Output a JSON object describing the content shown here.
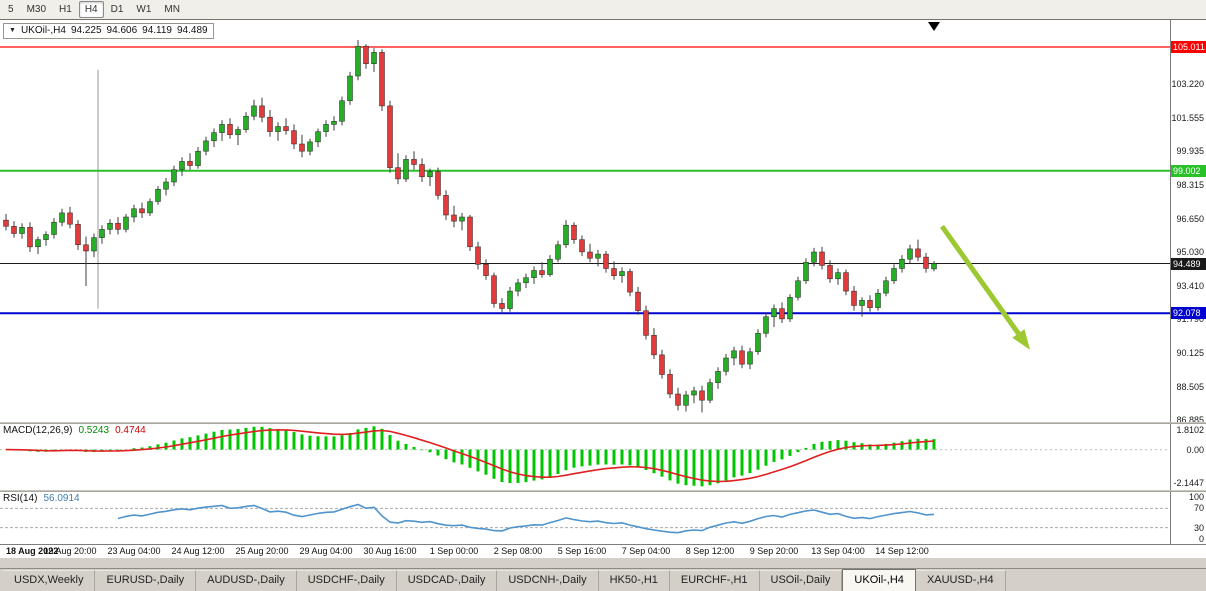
{
  "toolbar": {
    "timeframes": [
      {
        "label": "5",
        "active": false
      },
      {
        "label": "M30",
        "active": false
      },
      {
        "label": "H1",
        "active": false
      },
      {
        "label": "H4",
        "active": true
      },
      {
        "label": "D1",
        "active": false
      },
      {
        "label": "W1",
        "active": false
      },
      {
        "label": "MN",
        "active": false
      }
    ]
  },
  "chart": {
    "title": {
      "dropdown": "▼",
      "symbol_period": "UKOil-,H4",
      "open": "94.225",
      "high": "94.606",
      "low": "94.119",
      "close": "94.489"
    }
  },
  "chart_data": {
    "type": "candlestick",
    "symbol": "UKOil-",
    "period": "H4",
    "current_bar": {
      "open": 94.225,
      "high": 94.606,
      "low": 94.119,
      "close": 94.489
    },
    "colors": {
      "bull": "#27ae27",
      "bear": "#e23b3b",
      "wick": "#3c3c3c",
      "outline": "#262626"
    },
    "price_axis_ticks": [
      "103.220",
      "101.555",
      "99.935",
      "98.315",
      "96.650",
      "95.030",
      "93.410",
      "91.790",
      "90.125",
      "88.505",
      "86.885"
    ],
    "horizontal_lines": [
      {
        "name": "resistance-line",
        "price": 105.011,
        "label": "105.011",
        "color": "#ff0000",
        "width": 1.2
      },
      {
        "name": "mid-level-line",
        "price": 99.002,
        "label": "99.002",
        "color": "#28c128",
        "width": 2
      },
      {
        "name": "support-line",
        "price": 92.078,
        "label": "92.078",
        "color": "#0000d0",
        "width": 2
      },
      {
        "name": "current-price-line",
        "price": 94.489,
        "label": "94.489",
        "color": "#1a1a1a",
        "width": 1
      }
    ],
    "time_axis": {
      "bars_per_label": 8,
      "labels": [
        "18 Aug 2022",
        "19 Aug 20:00",
        "23 Aug 04:00",
        "24 Aug 12:00",
        "25 Aug 20:00",
        "29 Aug 04:00",
        "30 Aug 16:00",
        "1 Sep 00:00",
        "2 Sep 08:00",
        "5 Sep 16:00",
        "7 Sep 04:00",
        "8 Sep 12:00",
        "9 Sep 20:00",
        "13 Sep 04:00",
        "14 Sep 12:00"
      ]
    },
    "candles_ohlc": [
      [
        96.6,
        96.9,
        96.1,
        96.3
      ],
      [
        96.3,
        96.55,
        95.75,
        95.95
      ],
      [
        95.95,
        96.45,
        95.7,
        96.25
      ],
      [
        96.25,
        96.5,
        95.05,
        95.3
      ],
      [
        95.3,
        95.8,
        94.95,
        95.65
      ],
      [
        95.65,
        96.05,
        95.35,
        95.9
      ],
      [
        95.9,
        96.7,
        95.7,
        96.5
      ],
      [
        96.5,
        97.15,
        96.3,
        96.95
      ],
      [
        96.95,
        97.25,
        96.2,
        96.4
      ],
      [
        96.4,
        96.6,
        95.15,
        95.4
      ],
      [
        95.4,
        95.8,
        93.4,
        95.1
      ],
      [
        95.1,
        95.95,
        94.8,
        95.75
      ],
      [
        95.75,
        96.35,
        95.45,
        96.15
      ],
      [
        96.15,
        96.65,
        95.9,
        96.45
      ],
      [
        96.45,
        96.75,
        95.9,
        96.15
      ],
      [
        96.15,
        96.9,
        96.0,
        96.75
      ],
      [
        96.75,
        97.35,
        96.5,
        97.15
      ],
      [
        97.15,
        97.45,
        96.7,
        96.95
      ],
      [
        96.95,
        97.65,
        96.8,
        97.5
      ],
      [
        97.5,
        98.25,
        97.35,
        98.1
      ],
      [
        98.1,
        98.65,
        97.8,
        98.45
      ],
      [
        98.45,
        99.25,
        98.25,
        99.05
      ],
      [
        99.05,
        99.65,
        98.75,
        99.45
      ],
      [
        99.45,
        99.85,
        99.05,
        99.25
      ],
      [
        99.25,
        100.15,
        99.1,
        99.95
      ],
      [
        99.95,
        100.65,
        99.75,
        100.45
      ],
      [
        100.45,
        101.05,
        100.15,
        100.85
      ],
      [
        100.85,
        101.45,
        100.45,
        101.25
      ],
      [
        101.25,
        101.55,
        100.55,
        100.75
      ],
      [
        100.75,
        101.15,
        100.25,
        101.0
      ],
      [
        101.0,
        101.85,
        100.85,
        101.65
      ],
      [
        101.65,
        102.45,
        101.45,
        102.15
      ],
      [
        102.15,
        102.55,
        101.35,
        101.6
      ],
      [
        101.6,
        101.95,
        100.65,
        100.9
      ],
      [
        100.9,
        101.35,
        100.45,
        101.15
      ],
      [
        101.15,
        101.55,
        100.75,
        100.95
      ],
      [
        100.95,
        101.25,
        100.05,
        100.3
      ],
      [
        100.3,
        100.75,
        99.65,
        99.95
      ],
      [
        99.95,
        100.55,
        99.75,
        100.4
      ],
      [
        100.4,
        101.05,
        100.15,
        100.9
      ],
      [
        100.9,
        101.45,
        100.65,
        101.25
      ],
      [
        101.25,
        101.65,
        100.95,
        101.4
      ],
      [
        101.4,
        102.6,
        101.2,
        102.4
      ],
      [
        102.4,
        103.8,
        102.2,
        103.6
      ],
      [
        103.6,
        105.35,
        103.4,
        105.05
      ],
      [
        105.05,
        105.15,
        103.95,
        104.2
      ],
      [
        104.2,
        104.95,
        103.8,
        104.75
      ],
      [
        104.75,
        104.9,
        101.9,
        102.15
      ],
      [
        102.15,
        102.4,
        98.9,
        99.15
      ],
      [
        99.15,
        99.85,
        98.35,
        98.6
      ],
      [
        98.6,
        99.75,
        98.45,
        99.55
      ],
      [
        99.55,
        99.95,
        99.05,
        99.3
      ],
      [
        99.3,
        99.6,
        98.45,
        98.7
      ],
      [
        98.7,
        99.1,
        98.25,
        98.95
      ],
      [
        98.95,
        99.15,
        97.6,
        97.8
      ],
      [
        97.8,
        98.05,
        96.6,
        96.85
      ],
      [
        96.85,
        97.3,
        96.25,
        96.55
      ],
      [
        96.55,
        96.95,
        96.1,
        96.75
      ],
      [
        96.75,
        96.85,
        95.1,
        95.3
      ],
      [
        95.3,
        95.55,
        94.2,
        94.45
      ],
      [
        94.45,
        94.7,
        93.7,
        93.9
      ],
      [
        93.9,
        94.05,
        92.35,
        92.55
      ],
      [
        92.55,
        92.8,
        92.05,
        92.3
      ],
      [
        92.3,
        93.35,
        92.15,
        93.15
      ],
      [
        93.15,
        93.75,
        92.9,
        93.55
      ],
      [
        93.55,
        94.0,
        93.3,
        93.8
      ],
      [
        93.8,
        94.35,
        93.5,
        94.15
      ],
      [
        94.15,
        94.55,
        93.8,
        93.95
      ],
      [
        93.95,
        94.9,
        93.85,
        94.7
      ],
      [
        94.7,
        95.6,
        94.55,
        95.4
      ],
      [
        95.4,
        96.6,
        95.25,
        96.35
      ],
      [
        96.35,
        96.5,
        95.45,
        95.65
      ],
      [
        95.65,
        95.85,
        94.85,
        95.05
      ],
      [
        95.05,
        95.45,
        94.55,
        94.75
      ],
      [
        94.75,
        95.15,
        94.35,
        94.95
      ],
      [
        94.95,
        95.1,
        94.05,
        94.25
      ],
      [
        94.25,
        94.6,
        93.7,
        93.9
      ],
      [
        93.9,
        94.3,
        93.55,
        94.1
      ],
      [
        94.1,
        94.25,
        92.9,
        93.1
      ],
      [
        93.1,
        93.35,
        92.0,
        92.2
      ],
      [
        92.2,
        92.45,
        90.8,
        91.0
      ],
      [
        91.0,
        91.35,
        89.85,
        90.05
      ],
      [
        90.05,
        90.3,
        88.9,
        89.1
      ],
      [
        89.1,
        89.35,
        87.95,
        88.15
      ],
      [
        88.15,
        88.45,
        87.35,
        87.6
      ],
      [
        87.6,
        88.3,
        87.3,
        88.1
      ],
      [
        88.1,
        88.5,
        87.7,
        88.3
      ],
      [
        88.3,
        88.55,
        87.25,
        87.85
      ],
      [
        87.85,
        88.9,
        87.7,
        88.7
      ],
      [
        88.7,
        89.45,
        88.4,
        89.25
      ],
      [
        89.25,
        90.1,
        89.05,
        89.9
      ],
      [
        89.9,
        90.45,
        89.55,
        90.25
      ],
      [
        90.25,
        90.5,
        89.4,
        89.6
      ],
      [
        89.6,
        90.4,
        89.35,
        90.2
      ],
      [
        90.2,
        91.3,
        90.05,
        91.1
      ],
      [
        91.1,
        92.1,
        90.9,
        91.9
      ],
      [
        91.9,
        92.5,
        91.4,
        92.3
      ],
      [
        92.3,
        92.6,
        91.6,
        91.8
      ],
      [
        91.8,
        93.0,
        91.65,
        92.85
      ],
      [
        92.85,
        93.85,
        92.7,
        93.65
      ],
      [
        93.65,
        94.75,
        93.5,
        94.55
      ],
      [
        94.55,
        95.25,
        94.35,
        95.05
      ],
      [
        95.05,
        95.3,
        94.2,
        94.4
      ],
      [
        94.4,
        94.65,
        93.55,
        93.75
      ],
      [
        93.75,
        94.25,
        93.45,
        94.05
      ],
      [
        94.05,
        94.2,
        92.95,
        93.15
      ],
      [
        93.15,
        93.4,
        92.2,
        92.45
      ],
      [
        92.45,
        92.85,
        91.9,
        92.7
      ],
      [
        92.7,
        92.95,
        92.15,
        92.35
      ],
      [
        92.35,
        93.25,
        92.2,
        93.05
      ],
      [
        93.05,
        93.85,
        92.9,
        93.65
      ],
      [
        93.65,
        94.45,
        93.5,
        94.25
      ],
      [
        94.25,
        94.9,
        94.05,
        94.7
      ],
      [
        94.7,
        95.4,
        94.5,
        95.2
      ],
      [
        95.2,
        95.65,
        94.6,
        94.8
      ],
      [
        94.8,
        95.0,
        94.05,
        94.25
      ],
      [
        94.225,
        94.606,
        94.119,
        94.489
      ]
    ],
    "annotations": {
      "vertical_line": {
        "bar": 11.5,
        "from_price": 103.9,
        "to_price": 92.3,
        "color": "#9a9a9a"
      },
      "top_marker": {
        "bar": 116,
        "shape": "down-triangle",
        "color": "#000000"
      },
      "trend_arrow": {
        "from": {
          "bar": 117,
          "price": 96.3
        },
        "to": {
          "bar": 128,
          "price": 90.3
        },
        "color": "#9cc832",
        "width": 5
      }
    },
    "indicators": [
      {
        "name": "macd",
        "title": "MACD(12,26,9)",
        "values": [
          "0.5243",
          "0.4744"
        ],
        "axis_ticks": [
          "1.8102",
          "0.00",
          "-2.1447"
        ],
        "bar_color": "#00c400",
        "signal_color": "#e02020"
      },
      {
        "name": "rsi",
        "title": "RSI(14)",
        "values": [
          "56.0914"
        ],
        "axis_ticks": [
          "100",
          "70",
          "30",
          "0"
        ],
        "line_color": "#4f94cd",
        "levels": [
          70,
          30
        ],
        "level_color": "#ababab"
      }
    ]
  },
  "tabs": [
    {
      "label": "USDX,Weekly",
      "active": false
    },
    {
      "label": "EURUSD-,Daily",
      "active": false
    },
    {
      "label": "AUDUSD-,Daily",
      "active": false
    },
    {
      "label": "USDCHF-,Daily",
      "active": false
    },
    {
      "label": "USDCAD-,Daily",
      "active": false
    },
    {
      "label": "USDCNH-,Daily",
      "active": false
    },
    {
      "label": "HK50-,H1",
      "active": false
    },
    {
      "label": "EURCHF-,H1",
      "active": false
    },
    {
      "label": "USOil-,Daily",
      "active": false
    },
    {
      "label": "UKOil-,H4",
      "active": true
    },
    {
      "label": "XAUUSD-,H4",
      "active": false
    }
  ]
}
